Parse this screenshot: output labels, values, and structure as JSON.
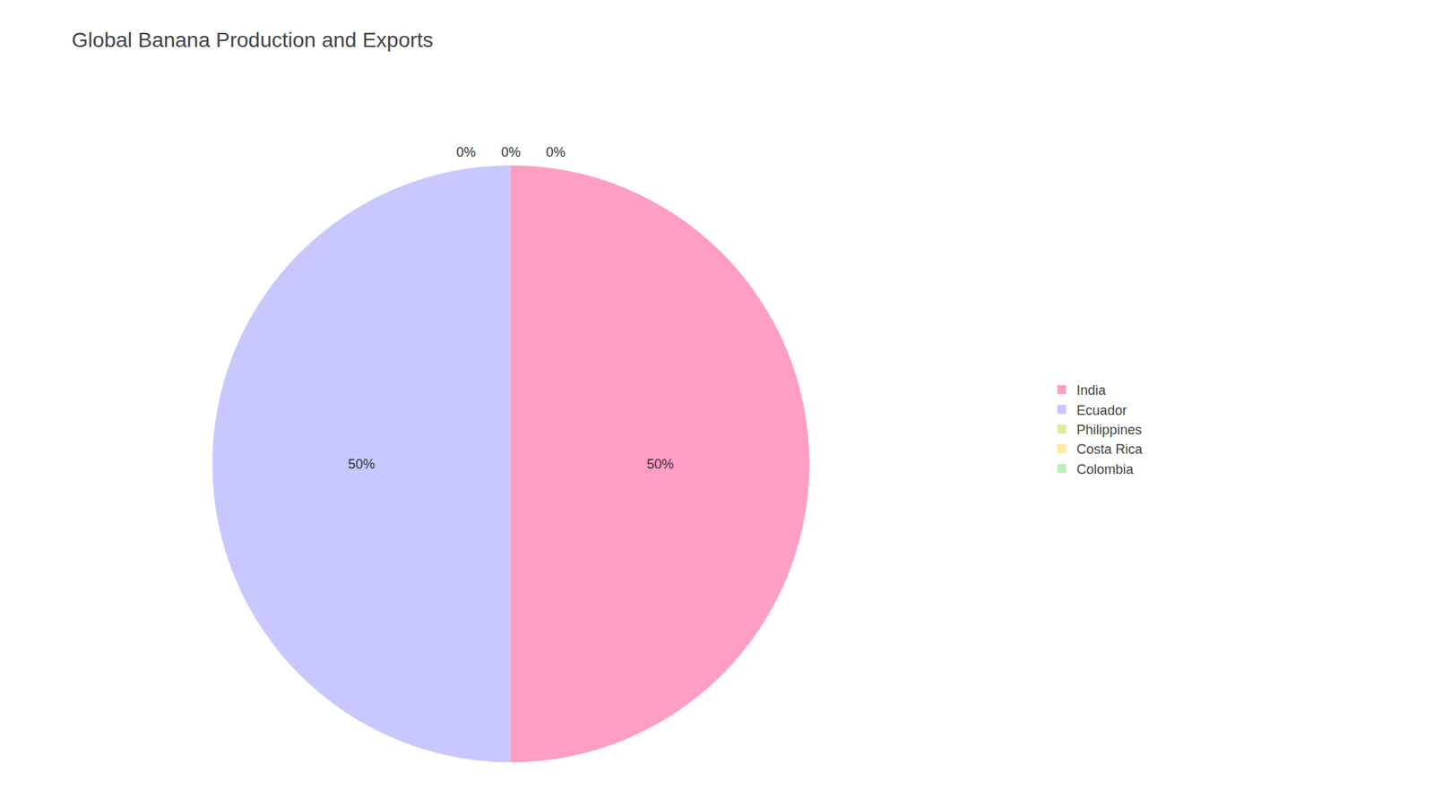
{
  "chart_data": {
    "type": "pie",
    "title": "Global Banana Production and Exports",
    "categories": [
      "India",
      "Ecuador",
      "Philippines",
      "Costa Rica",
      "Colombia"
    ],
    "values": [
      50,
      50,
      0,
      0,
      0
    ],
    "value_labels": [
      "50%",
      "50%",
      "0%",
      "0%",
      "0%"
    ],
    "colors": [
      "#FF9EC4",
      "#C8C8FF",
      "#D4F0A0",
      "#FFE8A0",
      "#B8F0B8"
    ],
    "data_labels": true,
    "legend": "right"
  }
}
